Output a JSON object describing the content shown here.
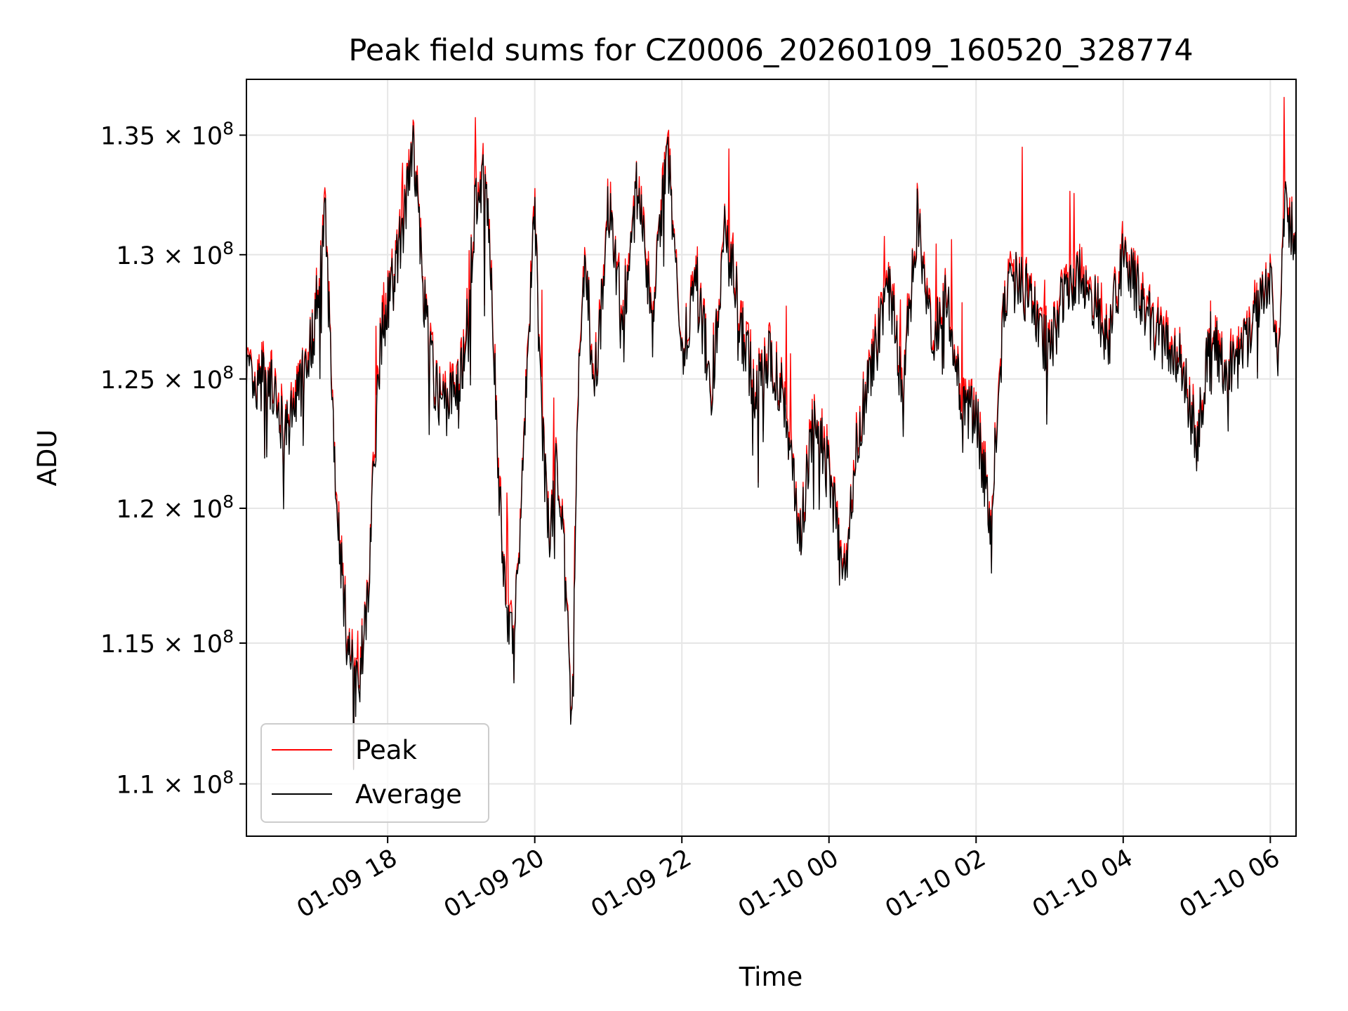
{
  "chart_data": {
    "type": "line",
    "title": "Peak field sums for CZ0006_20260109_160520_328774",
    "xlabel": "Time",
    "ylabel": "ADU",
    "yscale": "log",
    "ylim": [
      108200000,
      137400000
    ],
    "xlim_hours": [
      16.08,
      30.35
    ],
    "x_ticks": [
      {
        "label": "01-09 18",
        "hour": 18
      },
      {
        "label": "01-09 20",
        "hour": 20
      },
      {
        "label": "01-09 22",
        "hour": 22
      },
      {
        "label": "01-10 00",
        "hour": 24
      },
      {
        "label": "01-10 02",
        "hour": 26
      },
      {
        "label": "01-10 04",
        "hour": 28
      },
      {
        "label": "01-10 06",
        "hour": 30
      }
    ],
    "y_ticks": [
      {
        "mantissa": "1.1",
        "exp": "8",
        "value": 110000000
      },
      {
        "mantissa": "1.15",
        "exp": "8",
        "value": 115000000
      },
      {
        "mantissa": "1.2",
        "exp": "8",
        "value": 120000000
      },
      {
        "mantissa": "1.25",
        "exp": "8",
        "value": 125000000
      },
      {
        "mantissa": "1.3",
        "exp": "8",
        "value": 130000000
      },
      {
        "mantissa": "1.35",
        "exp": "8",
        "value": 135000000
      }
    ],
    "tick_mult": "×",
    "tick_base": "10",
    "grid": true,
    "legend_position": "lower-left",
    "series": [
      {
        "name": "Peak",
        "color": "#ff0000"
      },
      {
        "name": "Average",
        "color": "#000000"
      }
    ],
    "average_series_approx": {
      "hours": [
        16.08,
        16.2,
        16.35,
        16.5,
        16.65,
        16.8,
        17.0,
        17.15,
        17.3,
        17.45,
        17.6,
        17.75,
        17.9,
        18.05,
        18.2,
        18.35,
        18.5,
        18.65,
        18.8,
        19.0,
        19.1,
        19.2,
        19.3,
        19.4,
        19.5,
        19.6,
        19.7,
        19.8,
        19.9,
        20.0,
        20.1,
        20.2,
        20.3,
        20.4,
        20.5,
        20.6,
        20.7,
        20.8,
        20.9,
        21.0,
        21.2,
        21.4,
        21.6,
        21.8,
        22.0,
        22.2,
        22.4,
        22.6,
        22.8,
        23.0,
        23.2,
        23.4,
        23.6,
        23.8,
        24.0,
        24.2,
        24.4,
        24.6,
        24.8,
        25.0,
        25.2,
        25.4,
        25.6,
        25.8,
        26.0,
        26.2,
        26.4,
        26.6,
        26.8,
        27.0,
        27.2,
        27.4,
        27.6,
        27.8,
        28.0,
        28.2,
        28.4,
        28.6,
        28.8,
        29.0,
        29.2,
        29.4,
        29.6,
        29.8,
        30.0,
        30.1,
        30.2,
        30.35
      ],
      "values": [
        125500000,
        124000000,
        125500000,
        123500000,
        123000000,
        124500000,
        127000000,
        131500000,
        120500000,
        115000000,
        113000000,
        117500000,
        126500000,
        128500000,
        131000000,
        134500000,
        128000000,
        124500000,
        124000000,
        125000000,
        128000000,
        132500000,
        133000000,
        130000000,
        121500000,
        116500000,
        115000000,
        118500000,
        126000000,
        131500000,
        123000000,
        118500000,
        122000000,
        118000000,
        112000000,
        126000000,
        129500000,
        124500000,
        127500000,
        132000000,
        127500000,
        133000000,
        127000000,
        134500000,
        126000000,
        129000000,
        124500000,
        131500000,
        127000000,
        124500000,
        126000000,
        124000000,
        119000000,
        123500000,
        121500000,
        117000000,
        123000000,
        125500000,
        129000000,
        124500000,
        131500000,
        126500000,
        128500000,
        124000000,
        123500000,
        119500000,
        128500000,
        129000000,
        127500000,
        126000000,
        128500000,
        129000000,
        128000000,
        126500000,
        130000000,
        128500000,
        127000000,
        126000000,
        125500000,
        122500000,
        127000000,
        125000000,
        126000000,
        127500000,
        129000000,
        125500000,
        132500000,
        130000000
      ]
    }
  }
}
